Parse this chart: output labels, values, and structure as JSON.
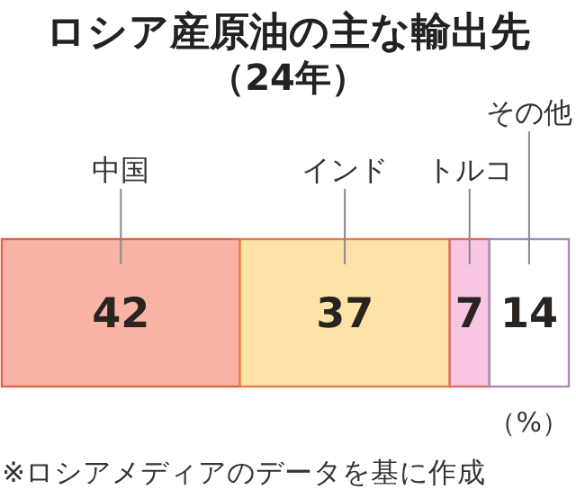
{
  "chart_data": {
    "type": "bar",
    "orientation": "horizontal",
    "stacked": true,
    "title": "ロシア産原油の主な輸出先",
    "subtitle": "（24年）",
    "categories": [
      null
    ],
    "series": [
      {
        "name": "中国",
        "color": "#f9b4a6",
        "values": [
          42
        ]
      },
      {
        "name": "インド",
        "color": "#fde3a8",
        "values": [
          37
        ]
      },
      {
        "name": "トルコ",
        "color": "#f7c6e2",
        "values": [
          7
        ]
      },
      {
        "name": "その他",
        "color": "#ffffff",
        "values": [
          14
        ]
      }
    ],
    "xlim": [
      0,
      100
    ],
    "data_labels": true,
    "annotations": [
      "（%）",
      "※ロシアメディアのデータを基に作成"
    ]
  }
}
